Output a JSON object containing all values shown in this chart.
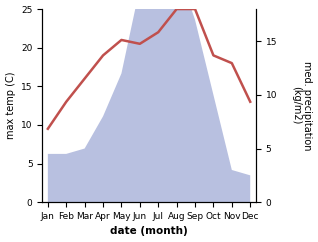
{
  "months": [
    "Jan",
    "Feb",
    "Mar",
    "Apr",
    "May",
    "Jun",
    "Jul",
    "Aug",
    "Sep",
    "Oct",
    "Nov",
    "Dec"
  ],
  "temperature": [
    9.5,
    13.0,
    16.0,
    19.0,
    21.0,
    20.5,
    22.0,
    25.0,
    25.0,
    19.0,
    18.0,
    13.0
  ],
  "precipitation": [
    4.5,
    4.5,
    5.0,
    8.0,
    12.0,
    20.0,
    26.0,
    22.0,
    17.0,
    10.0,
    3.0,
    2.5
  ],
  "temp_color": "#c0504d",
  "precip_color": "#b8c0e0",
  "ylabel_left": "max temp (C)",
  "ylabel_right": "med. precipitation\n(kg/m2)",
  "xlabel": "date (month)",
  "ylim_left": [
    0,
    25
  ],
  "ylim_right": [
    0,
    18
  ],
  "yticks_left": [
    0,
    5,
    10,
    15,
    20,
    25
  ],
  "yticks_right": [
    0,
    5,
    10,
    15
  ],
  "background_color": "#ffffff",
  "temp_linewidth": 1.8,
  "xlabel_fontsize": 7.5,
  "ylabel_fontsize": 7,
  "tick_fontsize": 6.5
}
